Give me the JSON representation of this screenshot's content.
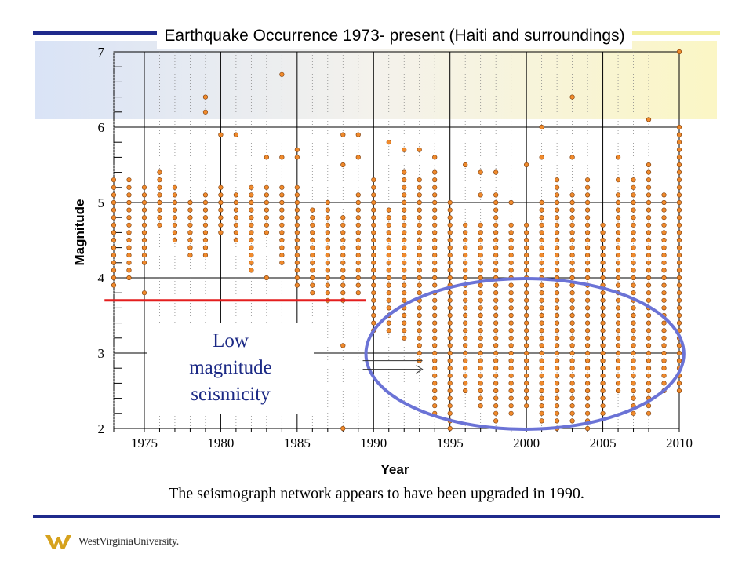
{
  "caption": "The seismograph network appears to have been upgraded in 1990.",
  "annotation": {
    "line1": "Low",
    "line2": "magnitude",
    "line3": "seismicity"
  },
  "logo": {
    "text": "WestVirginiaUniversity.",
    "color": "#d6a21e"
  },
  "colors": {
    "accent_blue": "#1f2a8c",
    "threshold_red": "#e41e1e",
    "ellipse": "#6b73d6",
    "marker": "#f08a2c"
  },
  "chart_data": {
    "type": "scatter",
    "title": "Earthquake Occurrence 1973- present (Haiti and surroundings)",
    "xlabel": "Year",
    "ylabel": "Magnitude",
    "xlim": [
      1973,
      2010
    ],
    "ylim": [
      2,
      7
    ],
    "xticks": [
      "1975",
      "1980",
      "1985",
      "1990",
      "1995",
      "2000",
      "2005",
      "2010"
    ],
    "yticks": [
      "2",
      "3",
      "4",
      "5",
      "6",
      "7"
    ],
    "grid": true,
    "threshold": {
      "magnitude": 3.7,
      "x_from": 1972.5,
      "x_to": 1989.5
    },
    "highlight_ellipse": {
      "center_year": 1999.9,
      "center_mag": 2.99,
      "semi_years": 10.4,
      "semi_mag": 1.0
    },
    "annotation_arrow": {
      "from": [
        1989.5,
        2.9
      ],
      "to": [
        1993.2,
        2.9
      ]
    },
    "columns": [
      {
        "year": 1973,
        "min": 3.9,
        "max": 5.3,
        "extra": []
      },
      {
        "year": 1974,
        "min": 4.0,
        "max": 5.3,
        "extra": []
      },
      {
        "year": 1975,
        "min": 4.2,
        "max": 5.2,
        "extra": [
          3.8
        ]
      },
      {
        "year": 1976,
        "min": 4.7,
        "max": 5.4,
        "extra": []
      },
      {
        "year": 1977,
        "min": 4.5,
        "max": 5.2,
        "extra": []
      },
      {
        "year": 1978,
        "min": 4.3,
        "max": 5.0,
        "extra": []
      },
      {
        "year": 1979,
        "min": 4.3,
        "max": 5.1,
        "extra": [
          6.2,
          6.4
        ]
      },
      {
        "year": 1980,
        "min": 4.6,
        "max": 5.2,
        "extra": [
          5.9
        ]
      },
      {
        "year": 1981,
        "min": 4.5,
        "max": 5.1,
        "extra": [
          5.9
        ]
      },
      {
        "year": 1982,
        "min": 4.1,
        "max": 5.2,
        "extra": []
      },
      {
        "year": 1983,
        "min": 4.6,
        "max": 5.2,
        "extra": [
          5.6,
          4.0
        ]
      },
      {
        "year": 1984,
        "min": 4.2,
        "max": 5.2,
        "extra": [
          5.6,
          6.7
        ]
      },
      {
        "year": 1985,
        "min": 3.9,
        "max": 5.2,
        "extra": [
          5.6,
          5.7
        ]
      },
      {
        "year": 1986,
        "min": 3.8,
        "max": 4.9,
        "extra": []
      },
      {
        "year": 1987,
        "min": 3.7,
        "max": 4.9,
        "extra": [
          5.0
        ]
      },
      {
        "year": 1988,
        "min": 3.7,
        "max": 4.8,
        "extra": [
          5.5,
          5.9,
          3.1,
          2.0
        ]
      },
      {
        "year": 1989,
        "min": 3.8,
        "max": 5.1,
        "extra": [
          5.6,
          5.9
        ]
      },
      {
        "year": 1990,
        "min": 3.3,
        "max": 5.3,
        "extra": []
      },
      {
        "year": 1991,
        "min": 3.3,
        "max": 4.9,
        "extra": [
          5.8
        ]
      },
      {
        "year": 1992,
        "min": 3.2,
        "max": 5.4,
        "extra": [
          5.7
        ]
      },
      {
        "year": 1993,
        "min": 2.9,
        "max": 5.3,
        "extra": [
          5.7
        ]
      },
      {
        "year": 1994,
        "min": 2.2,
        "max": 5.4,
        "extra": [
          5.6
        ]
      },
      {
        "year": 1995,
        "min": 2.0,
        "max": 5.0,
        "extra": []
      },
      {
        "year": 1996,
        "min": 2.5,
        "max": 4.7,
        "extra": [
          5.5
        ]
      },
      {
        "year": 1997,
        "min": 2.3,
        "max": 4.7,
        "extra": [
          5.1,
          5.4
        ]
      },
      {
        "year": 1998,
        "min": 2.1,
        "max": 5.1,
        "extra": [
          5.4
        ]
      },
      {
        "year": 1999,
        "min": 2.2,
        "max": 4.7,
        "extra": [
          5.0
        ]
      },
      {
        "year": 2000,
        "min": 2.3,
        "max": 4.7,
        "extra": [
          5.5
        ]
      },
      {
        "year": 2001,
        "min": 2.1,
        "max": 5.0,
        "extra": [
          5.6,
          6.0
        ]
      },
      {
        "year": 2002,
        "min": 2.0,
        "max": 5.3,
        "extra": []
      },
      {
        "year": 2003,
        "min": 2.1,
        "max": 5.1,
        "extra": [
          5.6,
          6.4
        ]
      },
      {
        "year": 2004,
        "min": 2.0,
        "max": 5.3,
        "extra": []
      },
      {
        "year": 2005,
        "min": 2.2,
        "max": 4.7,
        "extra": []
      },
      {
        "year": 2006,
        "min": 2.5,
        "max": 5.1,
        "extra": [
          5.3,
          5.6
        ]
      },
      {
        "year": 2007,
        "min": 2.2,
        "max": 5.3,
        "extra": []
      },
      {
        "year": 2008,
        "min": 2.2,
        "max": 5.5,
        "extra": [
          6.1
        ]
      },
      {
        "year": 2009,
        "min": 2.5,
        "max": 5.1,
        "extra": []
      },
      {
        "year": 2010,
        "min": 2.5,
        "max": 5.9,
        "extra": [
          6.0,
          7.0
        ]
      }
    ]
  }
}
